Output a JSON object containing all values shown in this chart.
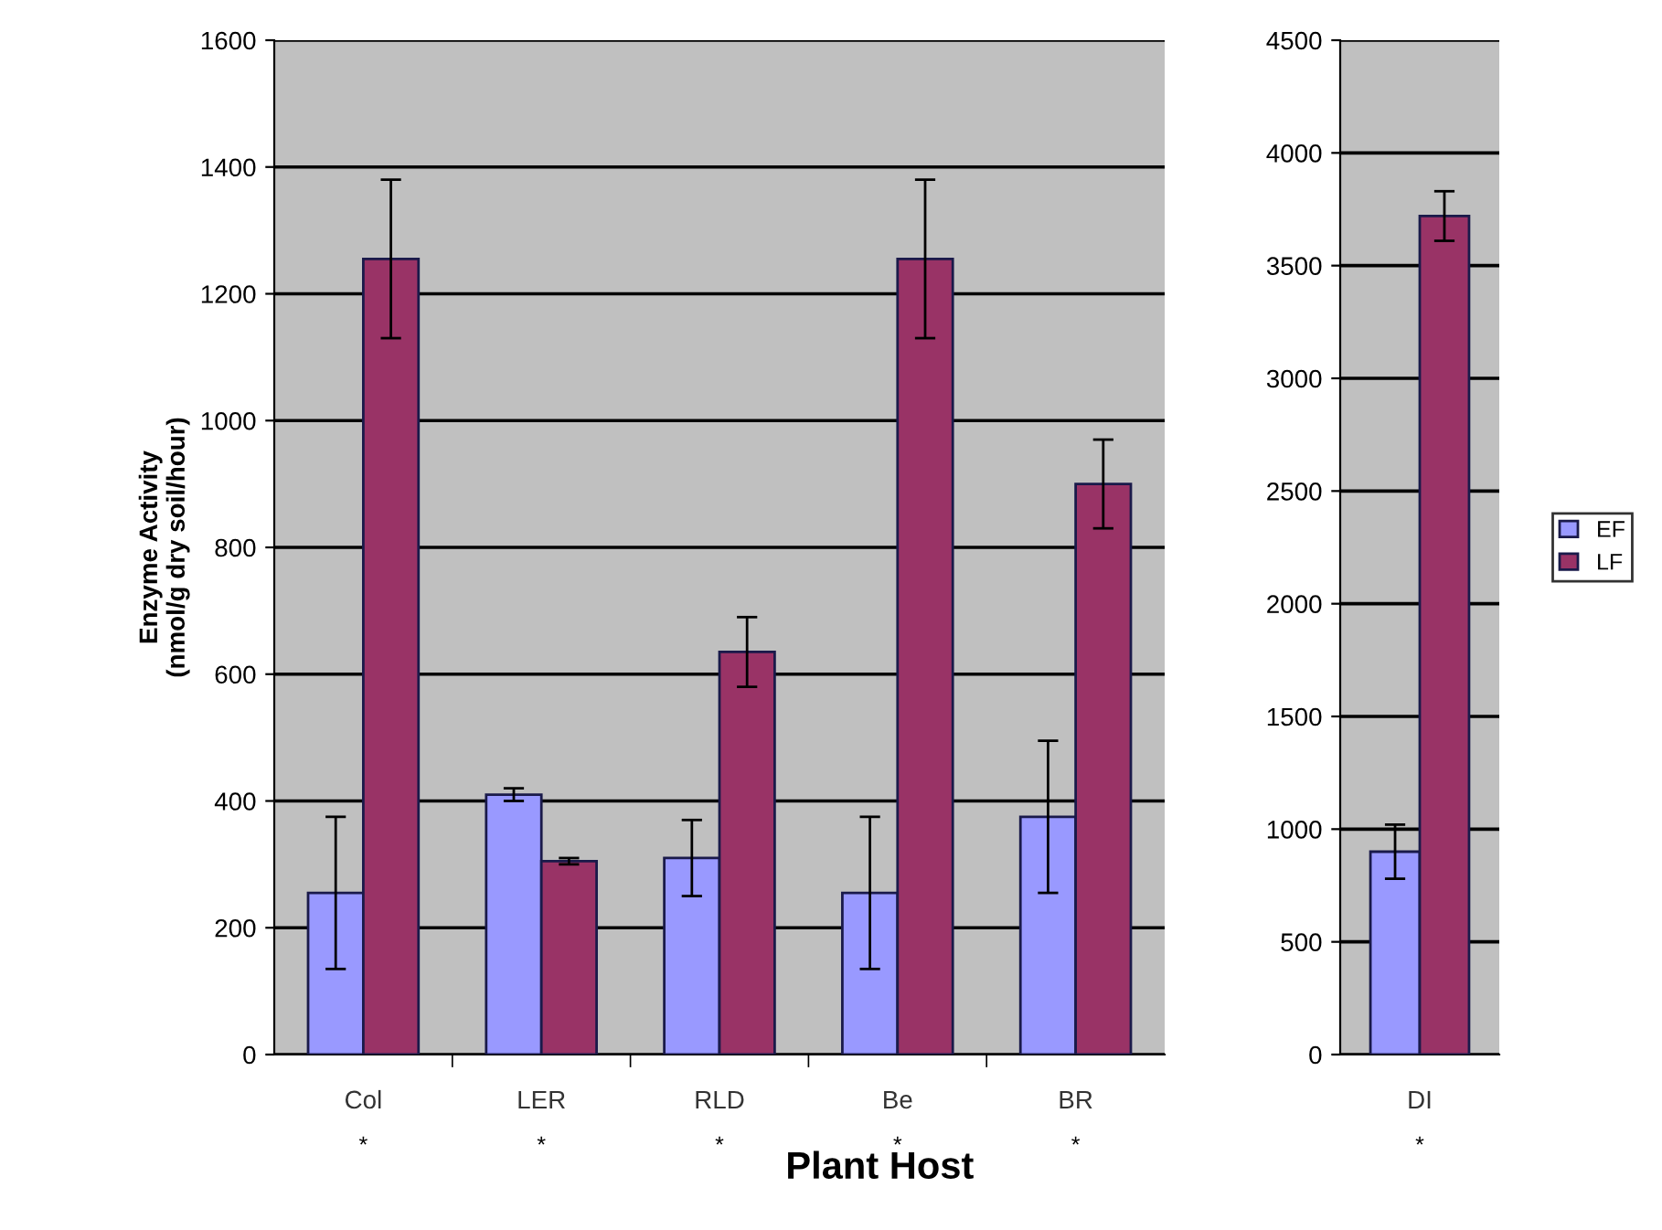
{
  "chart_data": [
    {
      "type": "bar",
      "xlabel": "Plant Host",
      "ylabel": "Enzyme Activity\n(nmol/g dry soil/hour)",
      "categories": [
        "Col",
        "LER",
        "RLD",
        "Be",
        "BR"
      ],
      "ylim": [
        0,
        1600
      ],
      "yticks": [
        0,
        200,
        400,
        600,
        800,
        1000,
        1200,
        1400,
        1600
      ],
      "grid": "y",
      "legend": "right",
      "annotations": [
        "*",
        "*",
        "*",
        "*",
        "*"
      ],
      "series": [
        {
          "name": "EF",
          "color": "#9999ff",
          "values": [
            255,
            410,
            310,
            255,
            375
          ],
          "errors": [
            120,
            10,
            60,
            120,
            120
          ]
        },
        {
          "name": "LF",
          "color": "#993366",
          "values": [
            1255,
            305,
            635,
            1255,
            900
          ],
          "errors": [
            125,
            5,
            55,
            125,
            70
          ]
        }
      ]
    },
    {
      "type": "bar",
      "categories": [
        "DI"
      ],
      "ylim": [
        0,
        4500
      ],
      "yticks": [
        0,
        500,
        1000,
        1500,
        2000,
        2500,
        3000,
        3500,
        4000,
        4500
      ],
      "grid": "y",
      "annotations": [
        "*"
      ],
      "series": [
        {
          "color": "#9999ff",
          "values": [
            900
          ],
          "errors": [
            120
          ]
        },
        {
          "color": "#993366",
          "values": [
            3720
          ],
          "errors": [
            110
          ]
        }
      ]
    }
  ]
}
